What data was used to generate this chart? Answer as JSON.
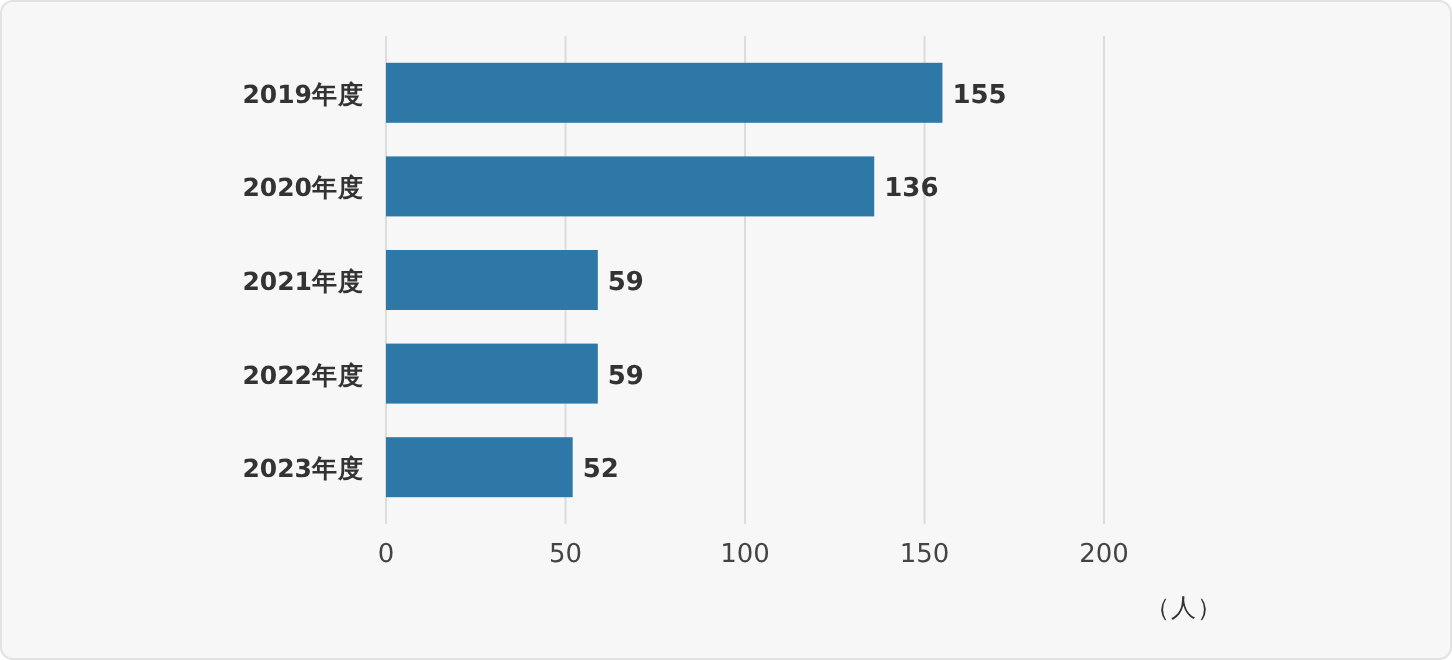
{
  "chart_data": {
    "type": "bar",
    "orientation": "horizontal",
    "categories": [
      "2019年度",
      "2020年度",
      "2021年度",
      "2022年度",
      "2023年度"
    ],
    "values": [
      155,
      136,
      59,
      59,
      52
    ],
    "color": "#2e78a8",
    "xlim": [
      0,
      200
    ],
    "xticks": [
      0,
      50,
      100,
      150,
      200
    ],
    "xlabel": "（人）",
    "grid": "x",
    "data_labels": true
  }
}
